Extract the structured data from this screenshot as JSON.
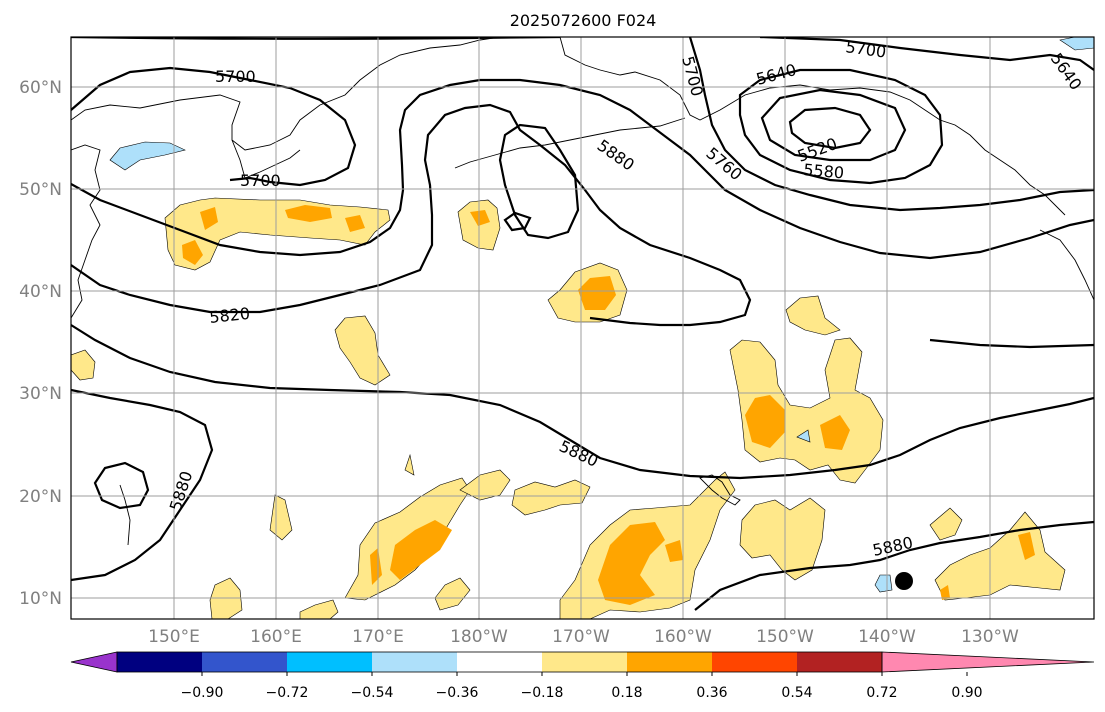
{
  "title": "2025072600 F024",
  "map": {
    "lon_labels": [
      "150°E",
      "160°E",
      "170°E",
      "180°W",
      "170°W",
      "160°W",
      "150°W",
      "140°W",
      "130°W"
    ],
    "lat_labels": [
      "60°N",
      "50°N",
      "40°N",
      "30°N",
      "20°N",
      "10°N"
    ],
    "contour_labels": [
      "5700",
      "5700",
      "5700",
      "5700",
      "5640",
      "5640",
      "5520",
      "5580",
      "5760",
      "5820",
      "5880",
      "5880",
      "5880",
      "5880"
    ],
    "marker": "black-dot"
  },
  "colorbar": {
    "ticks": [
      "−0.90",
      "−0.72",
      "−0.54",
      "−0.36",
      "−0.18",
      "0.18",
      "0.36",
      "0.54",
      "0.72",
      "0.90"
    ],
    "colors": [
      "#9933cc",
      "#000080",
      "#3355cc",
      "#00bfff",
      "#aee0fa",
      "#ffffff",
      "#ffe88a",
      "#ffa500",
      "#ff4500",
      "#b22222",
      "#ff88b0"
    ]
  },
  "fills": {
    "light": "#ffe88a",
    "dark": "#ffa500",
    "blue": "#aee0fa"
  }
}
